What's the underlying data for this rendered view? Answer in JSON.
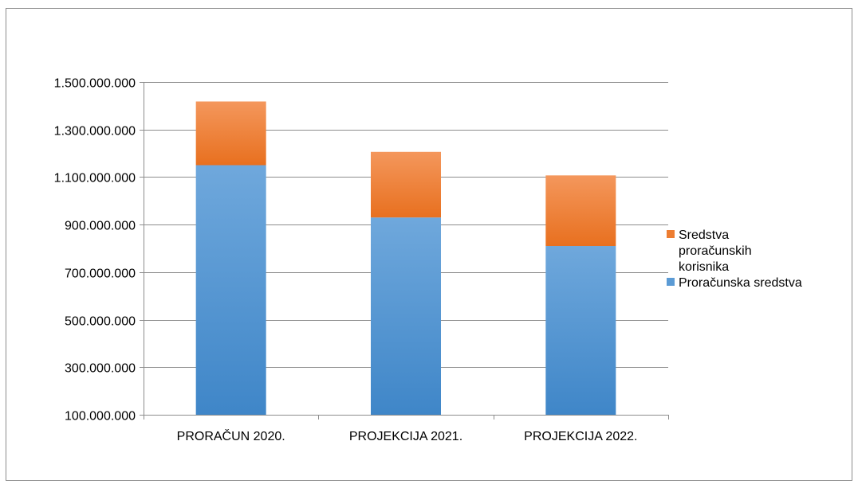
{
  "chart_data": {
    "type": "bar",
    "stacked": true,
    "title": "",
    "xlabel": "",
    "ylabel": "",
    "categories": [
      "PRORAČUN 2020.",
      "PROJEKCIJA 2021.",
      "PROJEKCIJA 2022."
    ],
    "series": [
      {
        "name": "Proračunska sredstva",
        "values": [
          1050000000,
          830000000,
          710000000
        ],
        "color": "#5b9bd5"
      },
      {
        "name": "Sredstva proračunskih korisnika",
        "values": [
          268000000,
          276000000,
          297000000
        ],
        "color": "#ed7d31"
      }
    ],
    "ylim": [
      100000000,
      1500000000
    ],
    "yticks": [
      100000000,
      300000000,
      500000000,
      700000000,
      900000000,
      1100000000,
      1300000000,
      1500000000
    ],
    "ytick_labels": [
      "100.000.000",
      "300.000.000",
      "500.000.000",
      "700.000.000",
      "900.000.000",
      "1.100.000.000",
      "1.300.000.000",
      "1.500.000.000"
    ],
    "grid": true,
    "legend_position": "right",
    "legend_entries": [
      {
        "label_lines": [
          "Sredstva",
          "proračunskih",
          "korisnika"
        ],
        "color": "#ed7d31"
      },
      {
        "label_lines": [
          "Proračunska sredstva"
        ],
        "color": "#5b9bd5"
      }
    ]
  }
}
